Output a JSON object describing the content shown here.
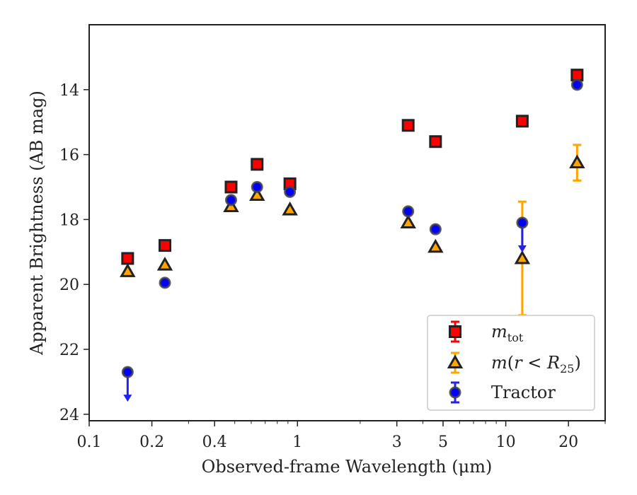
{
  "chart_data": {
    "type": "scatter",
    "xlabel": "Observed-frame Wavelength (μm)",
    "ylabel": "Apparent Brightness (AB mag)",
    "x_scale": "log",
    "xlim": [
      0.1,
      30
    ],
    "ylim": [
      24.2,
      12.0
    ],
    "y_inverted": true,
    "x_ticks": [
      {
        "value": 0.1,
        "label": "0.1"
      },
      {
        "value": 0.2,
        "label": "0.2"
      },
      {
        "value": 0.4,
        "label": "0.4"
      },
      {
        "value": 1,
        "label": "1"
      },
      {
        "value": 3,
        "label": "3"
      },
      {
        "value": 5,
        "label": "5"
      },
      {
        "value": 10,
        "label": "10"
      },
      {
        "value": 20,
        "label": "20"
      }
    ],
    "y_ticks": [
      {
        "value": 14,
        "label": "14"
      },
      {
        "value": 16,
        "label": "16"
      },
      {
        "value": 18,
        "label": "18"
      },
      {
        "value": 20,
        "label": "20"
      },
      {
        "value": 22,
        "label": "22"
      },
      {
        "value": 24,
        "label": "24"
      }
    ],
    "grid": false,
    "legend_position": "lower-right",
    "series": [
      {
        "name": "m_tot",
        "marker": "square",
        "color": "#ff0000",
        "edge_color": "#222222",
        "errorbar_color": "#ff0000",
        "points": [
          {
            "x": 0.153,
            "y": 19.2
          },
          {
            "x": 0.231,
            "y": 18.8
          },
          {
            "x": 0.48,
            "y": 17.0
          },
          {
            "x": 0.64,
            "y": 16.3
          },
          {
            "x": 0.92,
            "y": 16.9
          },
          {
            "x": 3.4,
            "y": 15.1
          },
          {
            "x": 4.6,
            "y": 15.6
          },
          {
            "x": 12.0,
            "y": 14.97
          },
          {
            "x": 22.0,
            "y": 13.55
          }
        ]
      },
      {
        "name": "m(r<R25)",
        "marker": "triangle",
        "color": "#ffa500",
        "edge_color": "#222222",
        "errorbar_color": "#ffa500",
        "points": [
          {
            "x": 0.153,
            "y": 19.6
          },
          {
            "x": 0.231,
            "y": 19.4
          },
          {
            "x": 0.48,
            "y": 17.6
          },
          {
            "x": 0.64,
            "y": 17.25
          },
          {
            "x": 0.92,
            "y": 17.7
          },
          {
            "x": 3.4,
            "y": 18.1
          },
          {
            "x": 4.6,
            "y": 18.85
          },
          {
            "x": 12.0,
            "y": 19.2,
            "err_low": 1.75,
            "err_high": 1.75
          },
          {
            "x": 22.0,
            "y": 16.25,
            "err_low": 0.55,
            "err_high": 0.55
          }
        ]
      },
      {
        "name": "Tractor",
        "marker": "circle",
        "color": "#0000ff",
        "edge_color": "#444444",
        "errorbar_color": "#2222ee",
        "points": [
          {
            "x": 0.153,
            "y": 22.7,
            "upper_limit": true
          },
          {
            "x": 0.231,
            "y": 19.95
          },
          {
            "x": 0.48,
            "y": 17.4
          },
          {
            "x": 0.64,
            "y": 17.0
          },
          {
            "x": 0.92,
            "y": 17.15
          },
          {
            "x": 3.4,
            "y": 17.75
          },
          {
            "x": 4.6,
            "y": 18.3
          },
          {
            "x": 12.0,
            "y": 18.1,
            "upper_limit": true
          },
          {
            "x": 22.0,
            "y": 13.85
          }
        ]
      }
    ]
  }
}
